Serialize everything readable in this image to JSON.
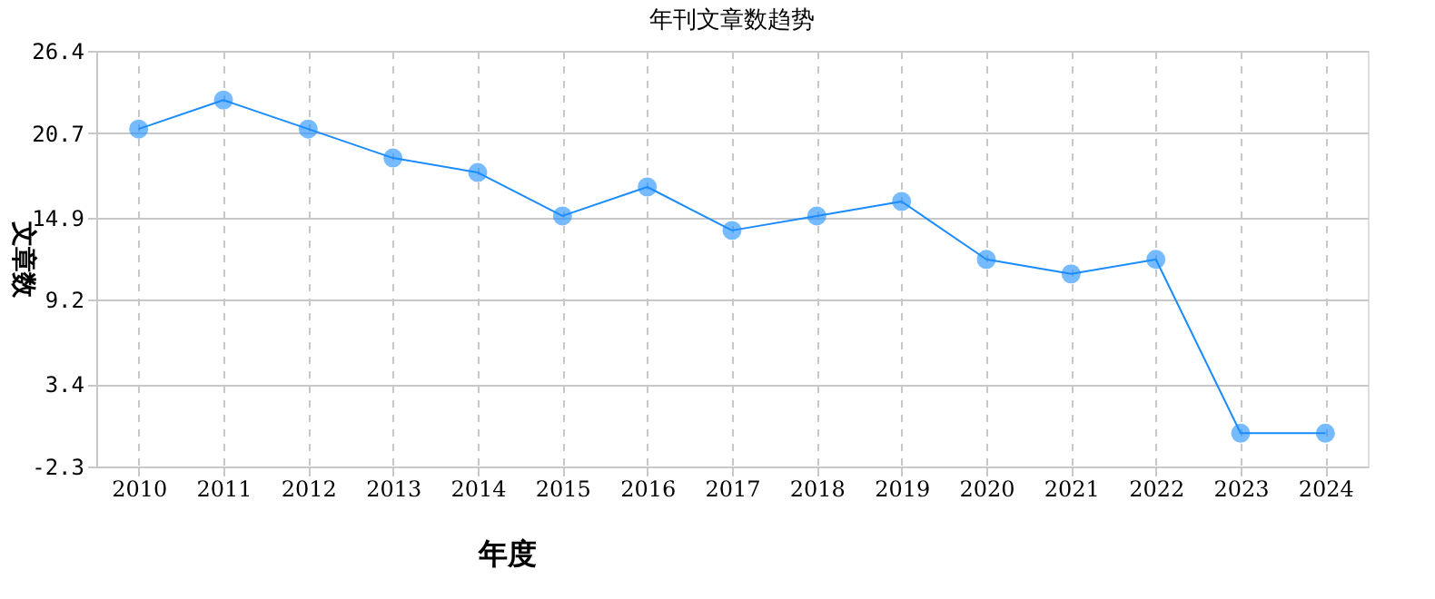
{
  "chart_data": {
    "type": "line",
    "title": "年刊文章数趋势",
    "xlabel": "年度",
    "ylabel": "文章数",
    "categories": [
      "2010",
      "2011",
      "2012",
      "2013",
      "2014",
      "2015",
      "2016",
      "2017",
      "2018",
      "2019",
      "2020",
      "2021",
      "2022",
      "2023",
      "2024"
    ],
    "series": [
      {
        "color": "#1a8cff",
        "values": [
          21,
          23,
          21,
          19,
          18,
          15,
          17,
          14,
          15,
          16,
          12,
          11,
          12,
          0,
          0
        ]
      }
    ],
    "ylim": [
      -2.3,
      26.4
    ],
    "yticks": [
      -2.3,
      3.4,
      9.2,
      14.9,
      20.7,
      26.4
    ],
    "grid": true,
    "marker": "circle",
    "line_style": "solid"
  }
}
